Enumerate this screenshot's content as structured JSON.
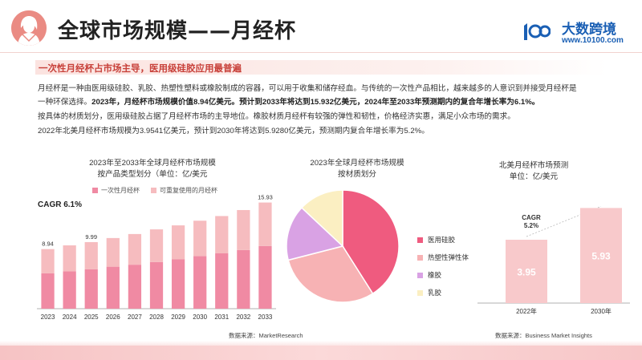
{
  "header": {
    "title": "全球市场规模——月经杯",
    "logo_name": "大数跨境",
    "logo_url": "www.10100.com"
  },
  "subtitle": "一次性月经杯占市场主导，医用级硅胶应用最普遍",
  "paragraphs": {
    "p1_line1": "月经杯是一种由医用级硅胶、乳胶、热塑性塑料或橡胶制成的容器，可以用于收集和储存经血。与传统的一次性产品相比，越来越多的人意识到并接受月经杯是",
    "p1_line2_plain": "一种环保选择。",
    "p1_line2_bold": "2023年，月经杯市场规模价值8.94亿美元。预计到2033年将达到15.932亿美元，2024年至2033年预测期内的复合年增长率为6.1%。",
    "p2": "按具体的材质划分，医用级硅胶占据了月经杯市场的主导地位。橡胶材质月经杯有较强的弹性和韧性，价格经济实惠，满足小众市场的需求。",
    "p3": "2022年北美月经杯市场规模为3.9541亿美元，预计到2030年将达到5.9280亿美元，预测期内复合年增长率为5.2%。"
  },
  "colors": {
    "accent": "#c8413a",
    "bar_disposable": "#f08aa3",
    "bar_reusable": "#f6bcbf",
    "pie_medical": "#ef5b7f",
    "pie_thermoplastic": "#f7b2b4",
    "pie_rubber": "#d9a2e4",
    "pie_latex": "#fbefc2",
    "na_bar": "#f8c9cb"
  },
  "charts": {
    "bar": {
      "title_line1": "2023年至2033年全球月经杯市场规模",
      "title_line2": "按产品类型划分（单位：亿/美元",
      "cagr": "CAGR 6.1%",
      "source": "数据来源：MarketResearch"
    },
    "pie": {
      "title_line1": "2023年全球月经杯市场规模",
      "title_line2": "按材质划分"
    },
    "na": {
      "title_line1": "北美月经杯市场预测",
      "title_line2": "单位：亿/美元",
      "cagr_label": "CAGR",
      "cagr_value": "5.2%",
      "source": "数据来源：Business Market Insights"
    }
  },
  "chart_data": [
    {
      "type": "bar",
      "stacked": true,
      "title": "2023年至2033年全球月经杯市场规模 按产品类型划分（单位：亿/美元",
      "categories": [
        "2023",
        "2024",
        "2025",
        "2026",
        "2027",
        "2028",
        "2029",
        "2030",
        "2031",
        "2032",
        "2033"
      ],
      "series": [
        {
          "name": "一次性月经杯",
          "values": [
            5.3,
            5.6,
            5.9,
            6.3,
            6.6,
            7.0,
            7.4,
            7.9,
            8.3,
            8.8,
            9.4
          ]
        },
        {
          "name": "可重复使用的月经杯",
          "values": [
            3.64,
            3.9,
            4.09,
            4.3,
            4.6,
            4.9,
            5.1,
            5.3,
            5.6,
            6.0,
            6.53
          ]
        }
      ],
      "data_labels": {
        "2023": "8.94",
        "2025": "9.99",
        "2033": "15.93"
      },
      "ylim": [
        0,
        16
      ],
      "annotation": "CAGR 6.1%",
      "legend": "top"
    },
    {
      "type": "pie",
      "title": "2023年全球月经杯市场规模 按材质划分",
      "labels": [
        "医用硅胶",
        "热塑性弹性体",
        "橡胶",
        "乳胶"
      ],
      "values": [
        41,
        30,
        16,
        13
      ],
      "legend": "right"
    },
    {
      "type": "bar",
      "title": "北美月经杯市场预测 单位：亿/美元",
      "categories": [
        "2022年",
        "2030年"
      ],
      "values": [
        3.95,
        5.93
      ],
      "annotation": "CAGR 5.2%",
      "ylim": [
        0,
        6.5
      ]
    }
  ]
}
